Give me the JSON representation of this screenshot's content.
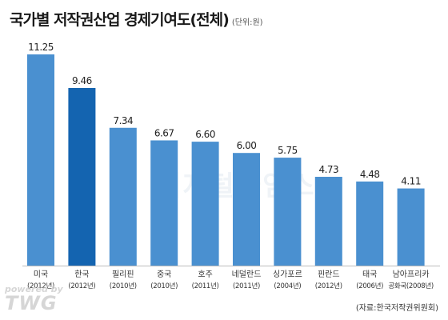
{
  "chart_data": {
    "type": "bar",
    "title": "국가별 저작권산업 경제기여도(전체)",
    "unit": "(단위:원)",
    "categories": [
      "미국",
      "한국",
      "필리핀",
      "중국",
      "호주",
      "네덜란드",
      "싱가포르",
      "핀란드",
      "태국",
      "남아프리카"
    ],
    "category_notes": [
      "(2012년)",
      "(2012년)",
      "(2010년)",
      "(2010년)",
      "(2011년)",
      "(2011년)",
      "(2004년)",
      "(2012년)",
      "(2006년)",
      "공화국(2008년)"
    ],
    "values": [
      11.25,
      9.46,
      7.34,
      6.67,
      6.6,
      6.0,
      5.75,
      4.73,
      4.48,
      4.11
    ],
    "value_labels": [
      "11.25",
      "9.46",
      "7.34",
      "6.67",
      "6.60",
      "6.00",
      "5.75",
      "4.73",
      "4.48",
      "4.11"
    ],
    "ylim": [
      0,
      11.25
    ],
    "grid": false,
    "colors": {
      "bar": "#4a90d0",
      "highlight": "#1464b0",
      "highlight_category": "한국"
    }
  },
  "watermark": "디지털타임스",
  "credit": {
    "line1": "powered by",
    "line2": "TWG"
  },
  "source": "(자료:한국저작권위원회)"
}
